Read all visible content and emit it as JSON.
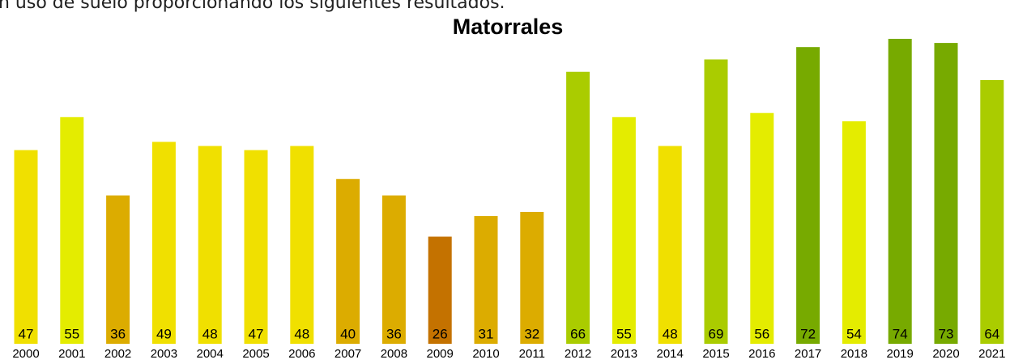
{
  "intro_text": "n uso de suelo proporcionando los siguientes resultados.",
  "chart_data": {
    "type": "bar",
    "title": "Matorrales",
    "categories": [
      "2000",
      "2001",
      "2002",
      "2003",
      "2004",
      "2005",
      "2006",
      "2007",
      "2008",
      "2009",
      "2010",
      "2011",
      "2012",
      "2013",
      "2014",
      "2015",
      "2016",
      "2017",
      "2018",
      "2019",
      "2020",
      "2021"
    ],
    "values": [
      47,
      55,
      36,
      49,
      48,
      47,
      48,
      40,
      36,
      26,
      31,
      32,
      66,
      55,
      48,
      69,
      56,
      72,
      54,
      74,
      73,
      64
    ],
    "colors": [
      "#f0e000",
      "#e4ec00",
      "#dcac00",
      "#f0e000",
      "#f0e000",
      "#f0e000",
      "#f0e000",
      "#dcac00",
      "#dcac00",
      "#c47200",
      "#dcac00",
      "#dcac00",
      "#aacc00",
      "#e4ec00",
      "#f0e000",
      "#aacc00",
      "#e4ec00",
      "#77aa00",
      "#e4ec00",
      "#77aa00",
      "#77aa00",
      "#aacc00"
    ]
  }
}
